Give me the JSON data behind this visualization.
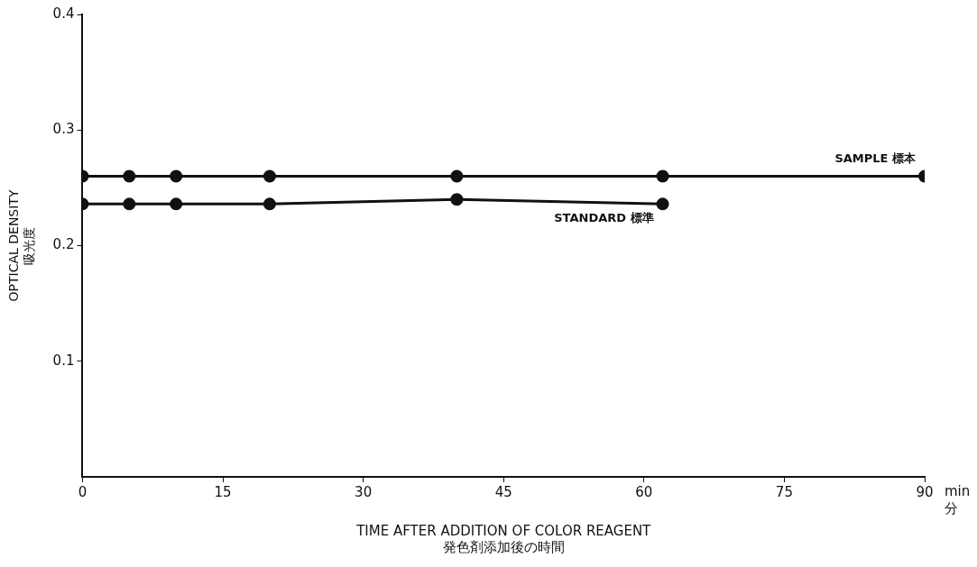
{
  "chart_data": {
    "type": "line",
    "xlabel": "TIME AFTER ADDITION OF COLOR REAGENT\n発色剤添加後の時間",
    "ylabel": "OPTICAL DENSITY\n吸光度",
    "xlim": [
      0,
      90
    ],
    "xticks": [
      0,
      15,
      30,
      45,
      60,
      75,
      90
    ],
    "ylim": [
      0,
      0.4
    ],
    "yticks": [
      0.1,
      0.2,
      0.3,
      0.4
    ],
    "grid": false,
    "legend": false,
    "marker": "circle",
    "line_style": "solid",
    "annotations": [
      "min\n分"
    ],
    "series": [
      {
        "name": "SAMPLE 標本",
        "color": "#111111",
        "x": [
          0,
          5,
          10,
          20,
          40,
          62,
          90
        ],
        "values": [
          0.26,
          0.26,
          0.26,
          0.26,
          0.26,
          0.26,
          0.26
        ]
      },
      {
        "name": "STANDARD 標準",
        "color": "#111111",
        "x": [
          0,
          5,
          10,
          20,
          40,
          62
        ],
        "values": [
          0.236,
          0.236,
          0.236,
          0.236,
          0.24,
          0.236
        ]
      }
    ]
  }
}
